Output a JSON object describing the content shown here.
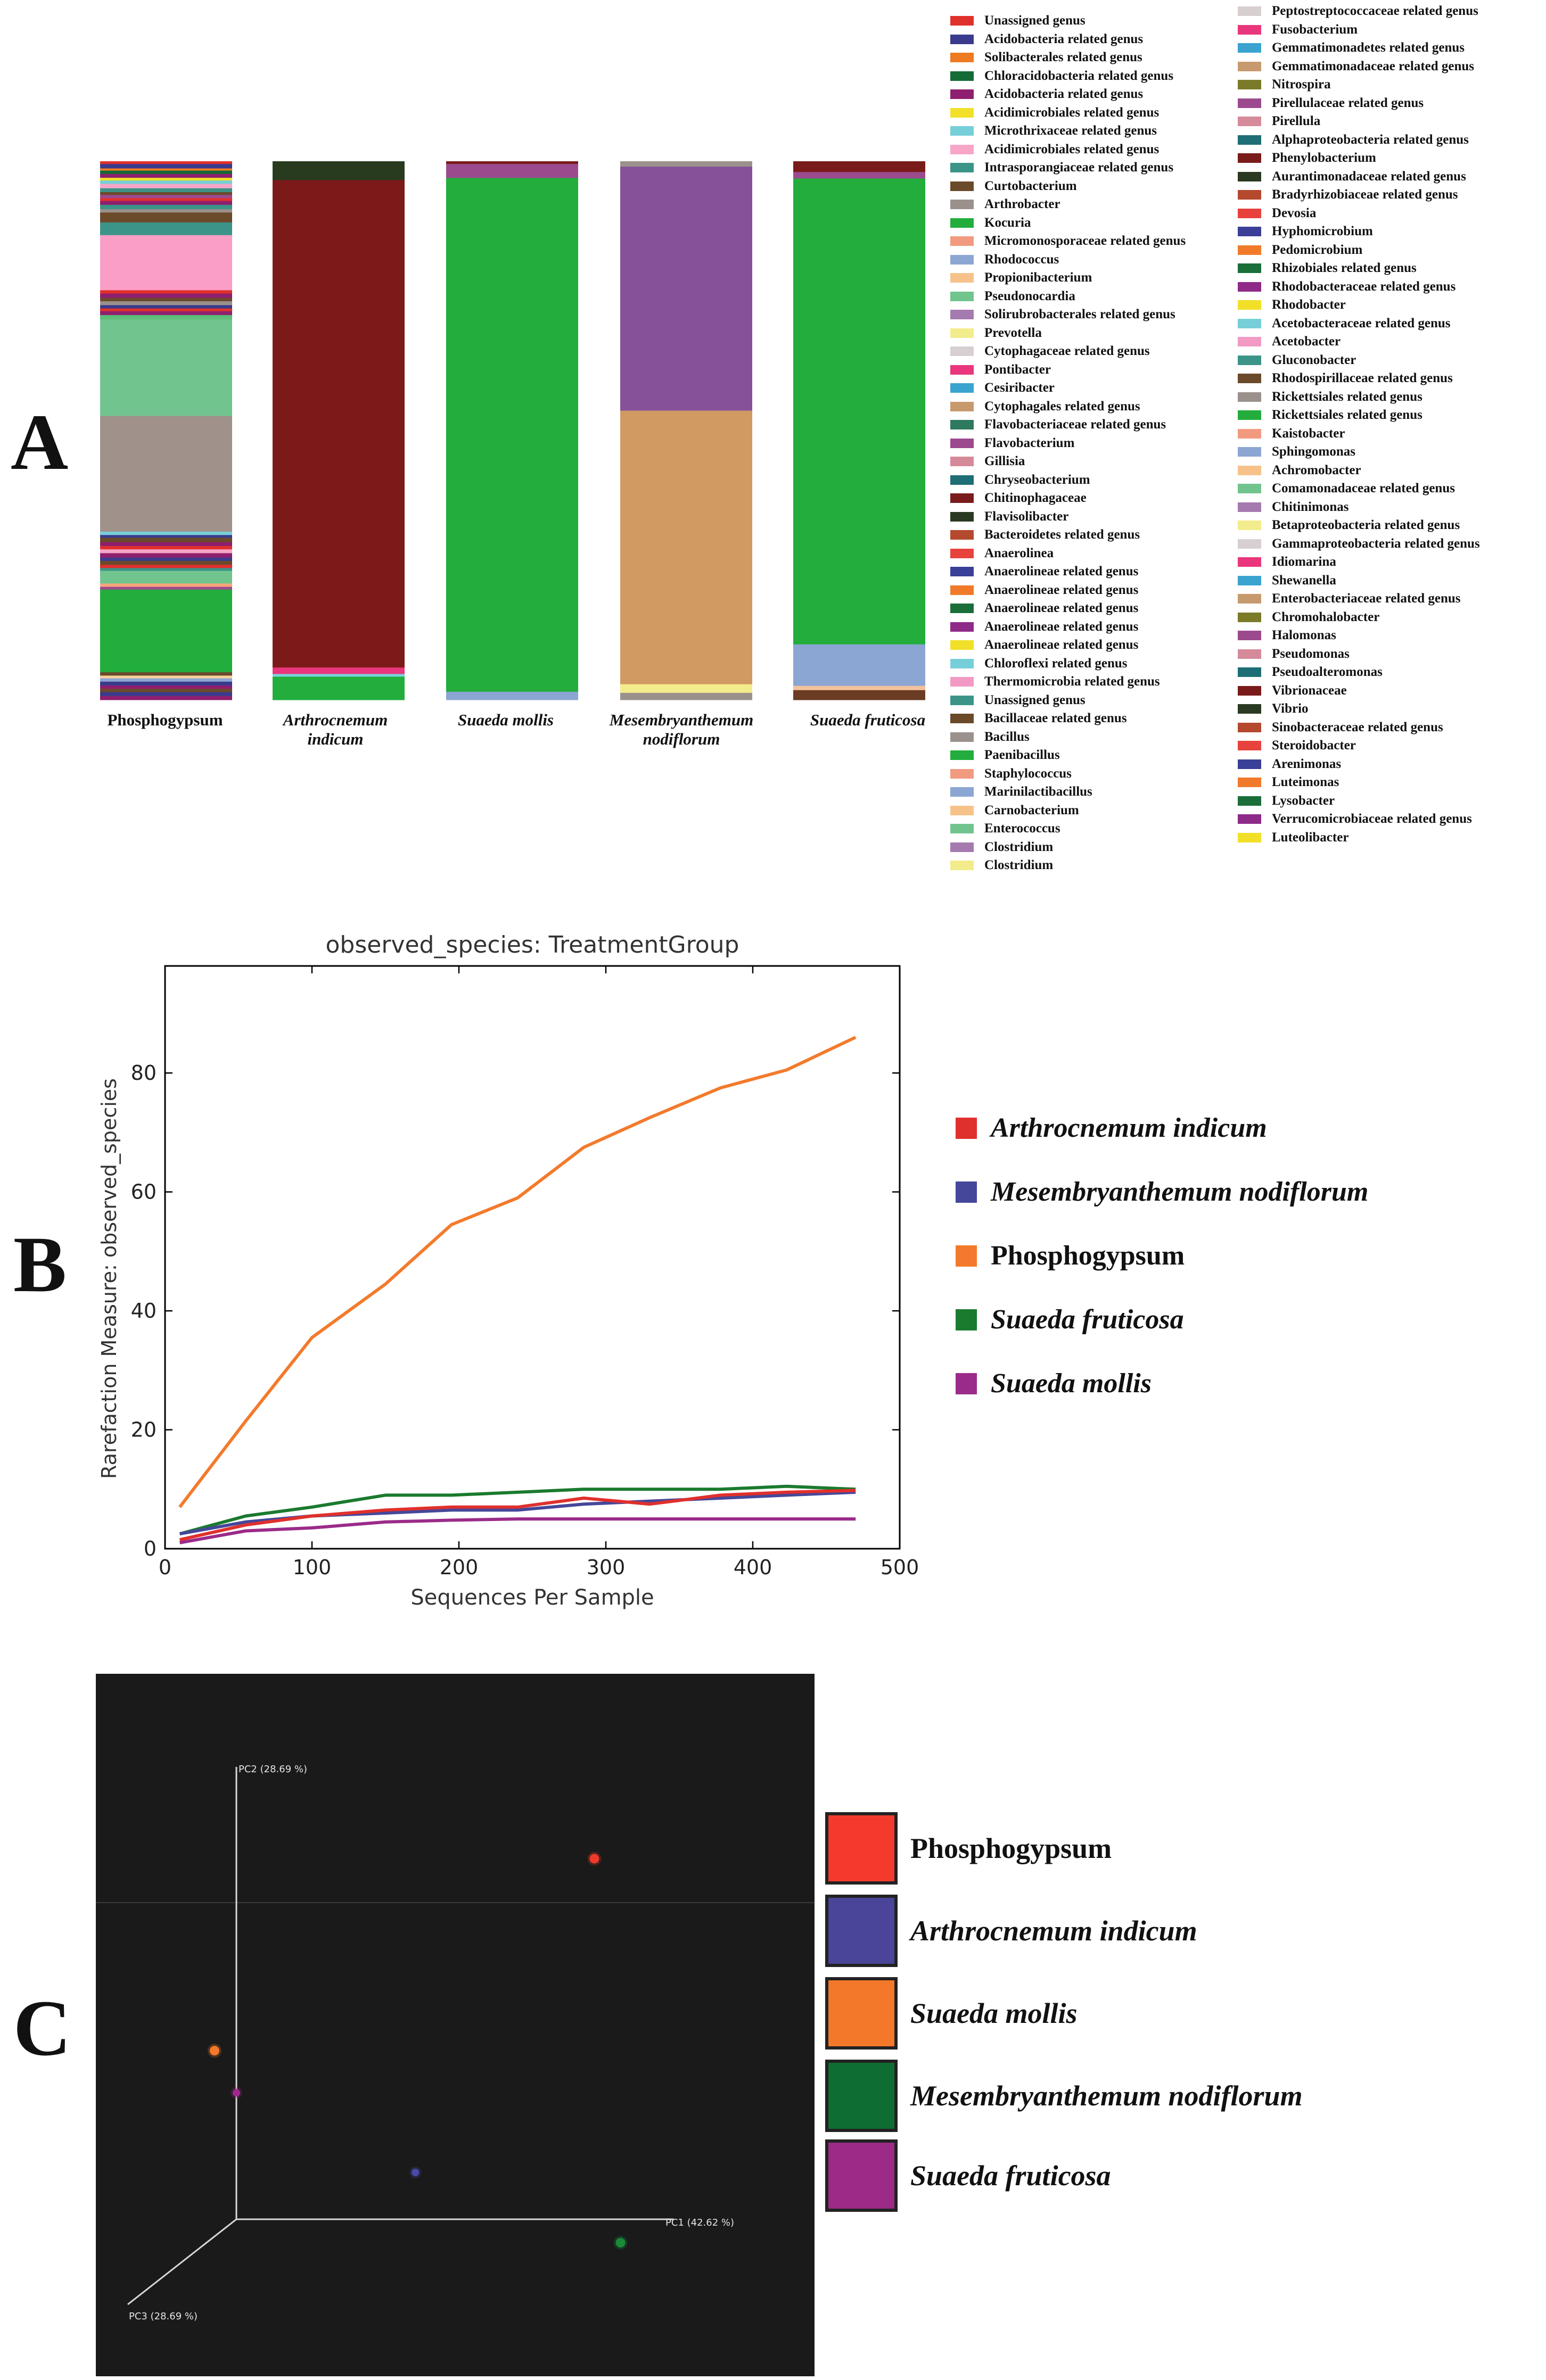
{
  "panel_letters": {
    "a": "A",
    "b": "B",
    "c": "C"
  },
  "chart_data": [
    {
      "type": "bar",
      "subtype": "stacked-100%",
      "title": "",
      "samples": [
        {
          "name": "Phosphogypsum",
          "italic": false
        },
        {
          "name": "Arthrocnemum\nindicum",
          "italic": true
        },
        {
          "name": "Suaeda mollis",
          "italic": true
        },
        {
          "name": "Mesembryanthemum\nnodiflorum",
          "italic": true
        },
        {
          "name": "Suaeda fruticosa",
          "italic": true
        }
      ],
      "stacks": [
        [
          {
            "color": "#e0302c",
            "value": 0.5
          },
          {
            "color": "#3a3b8c",
            "value": 0.8
          },
          {
            "color": "#ee7a22",
            "value": 0.4
          },
          {
            "color": "#136b35",
            "value": 0.6
          },
          {
            "color": "#8e1f6e",
            "value": 0.7
          },
          {
            "color": "#f2e028",
            "value": 0.5
          },
          {
            "color": "#76cfd8",
            "value": 0.6
          },
          {
            "color": "#f7a6c8",
            "value": 0.8
          },
          {
            "color": "#3c9488",
            "value": 0.7
          },
          {
            "color": "#6b4a2a",
            "value": 0.5
          },
          {
            "color": "#9c4a8e",
            "value": 0.6
          },
          {
            "color": "#e0302c",
            "value": 0.5
          },
          {
            "color": "#8e1f6e",
            "value": 0.7
          },
          {
            "color": "#3c9488",
            "value": 0.8
          },
          {
            "color": "#9b918c",
            "value": 0.6
          },
          {
            "color": "#6b4a2a",
            "value": 1.8
          },
          {
            "color": "#3c9488",
            "value": 2.3
          },
          {
            "color": "#fb9ec6",
            "value": 10.0
          },
          {
            "color": "#e0302c",
            "value": 0.6
          },
          {
            "color": "#8e1f6e",
            "value": 0.8
          },
          {
            "color": "#6b4a2a",
            "value": 0.6
          },
          {
            "color": "#9b918c",
            "value": 0.7
          },
          {
            "color": "#3a3b8c",
            "value": 0.6
          },
          {
            "color": "#e0302c",
            "value": 0.5
          },
          {
            "color": "#8e1f6e",
            "value": 0.7
          },
          {
            "color": "#5dbc79",
            "value": 0.8
          },
          {
            "color": "#72c48e",
            "value": 17.5
          },
          {
            "color": "#a0928b",
            "value": 21.0
          },
          {
            "color": "#76cfd8",
            "value": 0.6
          },
          {
            "color": "#3a3b8c",
            "value": 0.5
          },
          {
            "color": "#6b4a2a",
            "value": 0.8
          },
          {
            "color": "#8e1f6e",
            "value": 0.7
          },
          {
            "color": "#e0302c",
            "value": 0.6
          },
          {
            "color": "#f7a6c8",
            "value": 0.7
          },
          {
            "color": "#8e1f6e",
            "value": 0.8
          },
          {
            "color": "#3a3b8c",
            "value": 0.6
          },
          {
            "color": "#6b4a2a",
            "value": 0.7
          },
          {
            "color": "#e0302c",
            "value": 0.6
          },
          {
            "color": "#3c9488",
            "value": 0.5
          },
          {
            "color": "#72c48e",
            "value": 2.3
          },
          {
            "color": "#f7a67a",
            "value": 0.6
          },
          {
            "color": "#9c4a8e",
            "value": 0.5
          },
          {
            "color": "#22ad3c",
            "value": 15.0
          },
          {
            "color": "#6b4a2a",
            "value": 0.6
          },
          {
            "color": "#f7d19a",
            "value": 0.5
          },
          {
            "color": "#8ca6d4",
            "value": 0.6
          },
          {
            "color": "#3a3b8c",
            "value": 0.7
          },
          {
            "color": "#8e1f6e",
            "value": 0.6
          },
          {
            "color": "#6b4a2a",
            "value": 0.6
          },
          {
            "color": "#3a3b8c",
            "value": 0.7
          },
          {
            "color": "#8e1f6e",
            "value": 0.7
          }
        ],
        [
          {
            "color": "#283b1f",
            "value": 3.5
          },
          {
            "color": "#7c1a1a",
            "value": 90.5
          },
          {
            "color": "#e9367c",
            "value": 1.2
          },
          {
            "color": "#77d4dc",
            "value": 0.5
          },
          {
            "color": "#22ad3c",
            "value": 4.3
          }
        ],
        [
          {
            "color": "#7a1b1b",
            "value": 0.5
          },
          {
            "color": "#9c4a8e",
            "value": 2.6
          },
          {
            "color": "#22ad3c",
            "value": 95.4
          },
          {
            "color": "#8ca6d4",
            "value": 1.5
          }
        ],
        [
          {
            "color": "#9b918c",
            "value": 1.0
          },
          {
            "color": "#87519a",
            "value": 45.3
          },
          {
            "color": "#d19a62",
            "value": 50.8
          },
          {
            "color": "#f3ec8c",
            "value": 1.6
          },
          {
            "color": "#9b918c",
            "value": 1.3
          }
        ],
        [
          {
            "color": "#7a1b1b",
            "value": 2.0
          },
          {
            "color": "#9c4a8e",
            "value": 1.2
          },
          {
            "color": "#22ad3c",
            "value": 86.5
          },
          {
            "color": "#8ca6d4",
            "value": 7.7
          },
          {
            "color": "#f3c29a",
            "value": 0.8
          },
          {
            "color": "#6b3c24",
            "value": 1.8
          }
        ]
      ],
      "legend": [
        {
          "label": "Unassigned genus",
          "color": "#e0302c"
        },
        {
          "label": "Acidobacteria related genus",
          "color": "#3a3b8c"
        },
        {
          "label": "Solibacterales related genus",
          "color": "#ee7a22"
        },
        {
          "label": "Chloracidobacteria related genus",
          "color": "#136b35"
        },
        {
          "label": "Acidobacteria related genus",
          "color": "#8e1f6e"
        },
        {
          "label": "Acidimicrobiales related genus",
          "color": "#f2e028"
        },
        {
          "label": "Microthrixaceae related genus",
          "color": "#76cfd8"
        },
        {
          "label": "Acidimicrobiales related genus",
          "color": "#f7a6c8"
        },
        {
          "label": "Intrasporangiaceae related genus",
          "color": "#3c9488"
        },
        {
          "label": "Curtobacterium",
          "color": "#6b4a2a"
        },
        {
          "label": "Arthrobacter",
          "color": "#9b918c"
        },
        {
          "label": "Kocuria",
          "color": "#22ad3c"
        },
        {
          "label": "Micromonosporaceae related genus",
          "color": "#f29a80"
        },
        {
          "label": "Rhodococcus",
          "color": "#8ca6d4"
        },
        {
          "label": "Propionibacterium",
          "color": "#f7c28a"
        },
        {
          "label": "Pseudonocardia",
          "color": "#72c48e"
        },
        {
          "label": "Solirubrobacterales related genus",
          "color": "#a57aaf"
        },
        {
          "label": "Prevotella",
          "color": "#f3ec8c"
        },
        {
          "label": "Cytophagaceae related genus",
          "color": "#d8cfd0"
        },
        {
          "label": "Pontibacter",
          "color": "#e9367c"
        },
        {
          "label": "Cesiribacter",
          "color": "#3aa3cf"
        },
        {
          "label": "Cytophagales related genus",
          "color": "#c79a6e"
        },
        {
          "label": "Flavobacteriaceae related genus",
          "color": "#2e7a5e"
        },
        {
          "label": "Flavobacterium",
          "color": "#9c4a8e"
        },
        {
          "label": "Gillisia",
          "color": "#d58a9a"
        },
        {
          "label": "Chryseobacterium",
          "color": "#1e6e75"
        },
        {
          "label": "Chitinophagaceae",
          "color": "#7a1b1b"
        },
        {
          "label": "Flavisolibacter",
          "color": "#2a3a22"
        },
        {
          "label": "Bacteroidetes related genus",
          "color": "#b4492e"
        },
        {
          "label": "Anaerolinea",
          "color": "#e8423c"
        },
        {
          "label": "Anaerolineae related genus",
          "color": "#3a3f98"
        },
        {
          "label": "Anaerolineae related genus",
          "color": "#f07a2a"
        },
        {
          "label": "Anaerolineae related genus",
          "color": "#1a6e3a"
        },
        {
          "label": "Anaerolineae related genus",
          "color": "#8e2a88"
        },
        {
          "label": "Anaerolineae related genus",
          "color": "#f2e028"
        },
        {
          "label": "Chloroflexi related genus",
          "color": "#76cfd8"
        },
        {
          "label": "Thermomicrobia related genus",
          "color": "#f29ac4"
        },
        {
          "label": "Unassigned genus",
          "color": "#3c9488"
        },
        {
          "label": "Bacillaceae related genus",
          "color": "#6b4a2a"
        },
        {
          "label": "Bacillus",
          "color": "#9b918c"
        },
        {
          "label": "Paenibacillus",
          "color": "#22ad3c"
        },
        {
          "label": "Staphylococcus",
          "color": "#f29a80"
        },
        {
          "label": "Marinilactibacillus",
          "color": "#8ca6d4"
        },
        {
          "label": "Carnobacterium",
          "color": "#f7c28a"
        },
        {
          "label": "Enterococcus",
          "color": "#72c48e"
        },
        {
          "label": "Clostridium",
          "color": "#a57aaf"
        },
        {
          "label": "Clostridium",
          "color": "#f3ec8c"
        },
        {
          "label": "Peptostreptococcaceae related genus",
          "color": "#d8cfd0"
        },
        {
          "label": "Fusobacterium",
          "color": "#e9367c"
        },
        {
          "label": "Gemmatimonadetes related genus",
          "color": "#3aa3cf"
        },
        {
          "label": "Gemmatimonadaceae related genus",
          "color": "#c79a6e"
        },
        {
          "label": "Nitrospira",
          "color": "#7a7a28"
        },
        {
          "label": "Pirellulaceae related genus",
          "color": "#9c4a8e"
        },
        {
          "label": "Pirellula",
          "color": "#d58a9a"
        },
        {
          "label": "Alphaproteobacteria related genus",
          "color": "#1e6e75"
        },
        {
          "label": "Phenylobacterium",
          "color": "#7a1b1b"
        },
        {
          "label": "Aurantimonadaceae related genus",
          "color": "#2a3a22"
        },
        {
          "label": "Bradyrhizobiaceae related genus",
          "color": "#b4492e"
        },
        {
          "label": "Devosia",
          "color": "#e8423c"
        },
        {
          "label": "Hyphomicrobium",
          "color": "#3a3f98"
        },
        {
          "label": "Pedomicrobium",
          "color": "#f07a2a"
        },
        {
          "label": "Rhizobiales related genus",
          "color": "#1a6e3a"
        },
        {
          "label": "Rhodobacteraceae related genus",
          "color": "#8e2a88"
        },
        {
          "label": "Rhodobacter",
          "color": "#f2e028"
        },
        {
          "label": "Acetobacteraceae related genus",
          "color": "#76cfd8"
        },
        {
          "label": "Acetobacter",
          "color": "#f29ac4"
        },
        {
          "label": "Gluconobacter",
          "color": "#3c9488"
        },
        {
          "label": "Rhodospirillaceae related genus",
          "color": "#6b4a2a"
        },
        {
          "label": "Rickettsiales related genus",
          "color": "#9b918c"
        },
        {
          "label": "Rickettsiales related genus",
          "color": "#22ad3c"
        },
        {
          "label": "Kaistobacter",
          "color": "#f29a80"
        },
        {
          "label": "Sphingomonas",
          "color": "#8ca6d4"
        },
        {
          "label": "Achromobacter",
          "color": "#f7c28a"
        },
        {
          "label": "Comamonadaceae related genus",
          "color": "#72c48e"
        },
        {
          "label": "Chitinimonas",
          "color": "#a57aaf"
        },
        {
          "label": "Betaproteobacteria related genus",
          "color": "#f3ec8c"
        },
        {
          "label": "Gammaproteobacteria related genus",
          "color": "#d8cfd0"
        },
        {
          "label": "Idiomarina",
          "color": "#e9367c"
        },
        {
          "label": "Shewanella",
          "color": "#3aa3cf"
        },
        {
          "label": "Enterobacteriaceae related genus",
          "color": "#c79a6e"
        },
        {
          "label": "Chromohalobacter",
          "color": "#7a7a28"
        },
        {
          "label": "Halomonas",
          "color": "#9c4a8e"
        },
        {
          "label": "Pseudomonas",
          "color": "#d58a9a"
        },
        {
          "label": "Pseudoalteromonas",
          "color": "#1e6e75"
        },
        {
          "label": "Vibrionaceae",
          "color": "#7a1b1b"
        },
        {
          "label": "Vibrio",
          "color": "#2a3a22"
        },
        {
          "label": "Sinobacteraceae related genus",
          "color": "#b4492e"
        },
        {
          "label": "Steroidobacter",
          "color": "#e8423c"
        },
        {
          "label": "Arenimonas",
          "color": "#3a3f98"
        },
        {
          "label": "Luteimonas",
          "color": "#f07a2a"
        },
        {
          "label": "Lysobacter",
          "color": "#1a6e3a"
        },
        {
          "label": "Verrucomicrobiaceae related genus",
          "color": "#8e2a88"
        },
        {
          "label": "Luteolibacter",
          "color": "#f2e028"
        }
      ]
    },
    {
      "type": "line",
      "title": "observed_species: TreatmentGroup",
      "xlabel": "Sequences Per Sample",
      "ylabel": "Rarefaction Measure: observed_species",
      "xlim": [
        0,
        500
      ],
      "ylim": [
        0,
        98
      ],
      "xticks": [
        0,
        100,
        200,
        300,
        400,
        500
      ],
      "yticks": [
        0,
        20,
        40,
        60,
        80
      ],
      "x": [
        10,
        55,
        100,
        150,
        195,
        240,
        285,
        330,
        378,
        423,
        470
      ],
      "series": [
        {
          "name": "Phosphogypsum",
          "color": "#f37a2c",
          "italic": false,
          "values": [
            7,
            21.5,
            35.5,
            44.5,
            54.5,
            59,
            67.5,
            72.5,
            77.5,
            80.5,
            86
          ]
        },
        {
          "name": "Suaeda fruticosa",
          "color": "#1a7a2e",
          "italic": true,
          "values": [
            2.5,
            5.5,
            7,
            9,
            9,
            9.5,
            10,
            10,
            10,
            10.5,
            10
          ]
        },
        {
          "name": "Mesembryanthemum nodiflorum",
          "color": "#45479a",
          "italic": true,
          "values": [
            2.5,
            4.5,
            5.5,
            6,
            6.5,
            6.5,
            7.5,
            8,
            8.5,
            9,
            9.5
          ]
        },
        {
          "name": "Arthrocnemum indicum",
          "color": "#e0302c",
          "italic": true,
          "values": [
            1.5,
            4,
            5.5,
            6.5,
            7,
            7,
            8.5,
            7.5,
            9,
            9.5,
            9.8
          ]
        },
        {
          "name": "Suaeda mollis",
          "color": "#9b2b8a",
          "italic": true,
          "values": [
            1,
            3,
            3.5,
            4.5,
            4.8,
            5,
            5,
            5,
            5,
            5,
            5
          ]
        }
      ],
      "legend_order": [
        "Arthrocnemum indicum",
        "Mesembryanthemum nodiflorum",
        "Phosphogypsum",
        "Suaeda fruticosa",
        "Suaeda mollis"
      ]
    },
    {
      "type": "scatter",
      "subtype": "pcoa-3d",
      "title": "",
      "axes": {
        "pc1": "PC1 (42.62 %)",
        "pc2": "PC2 (28.69 %)",
        "pc3": "PC3 (28.69 %)"
      },
      "points": [
        {
          "name": "Phosphogypsum",
          "color": "#ee3a2a",
          "pc1": 0.82,
          "pc2": 0.77,
          "r": 9
        },
        {
          "name": "Suaeda mollis",
          "color": "#f27a2a",
          "pc1": -0.05,
          "pc2": 0.36,
          "r": 9
        },
        {
          "name": "Suaeda fruticosa",
          "color": "#a0288c",
          "pc1": 0.0,
          "pc2": 0.27,
          "r": 7
        },
        {
          "name": "Arthrocnemum indicum",
          "color": "#4a4aa8",
          "pc1": 0.41,
          "pc2": 0.1,
          "r": 7
        },
        {
          "name": "Mesembryanthemum nodiflorum",
          "color": "#1a8a3a",
          "pc1": 0.88,
          "pc2": -0.05,
          "r": 9
        }
      ],
      "legend": [
        {
          "label": "Phosphogypsum",
          "color": "#f33a2c",
          "italic": false
        },
        {
          "label": "Arthrocnemum indicum",
          "color": "#4a4598",
          "italic": true
        },
        {
          "label": "Suaeda mollis",
          "color": "#f4782a",
          "italic": true
        },
        {
          "label": "Mesembryanthemum nodiflorum",
          "color": "#0e6e32",
          "italic": true
        },
        {
          "label": "Suaeda fruticosa",
          "color": "#9b2b86",
          "italic": true
        }
      ]
    }
  ]
}
